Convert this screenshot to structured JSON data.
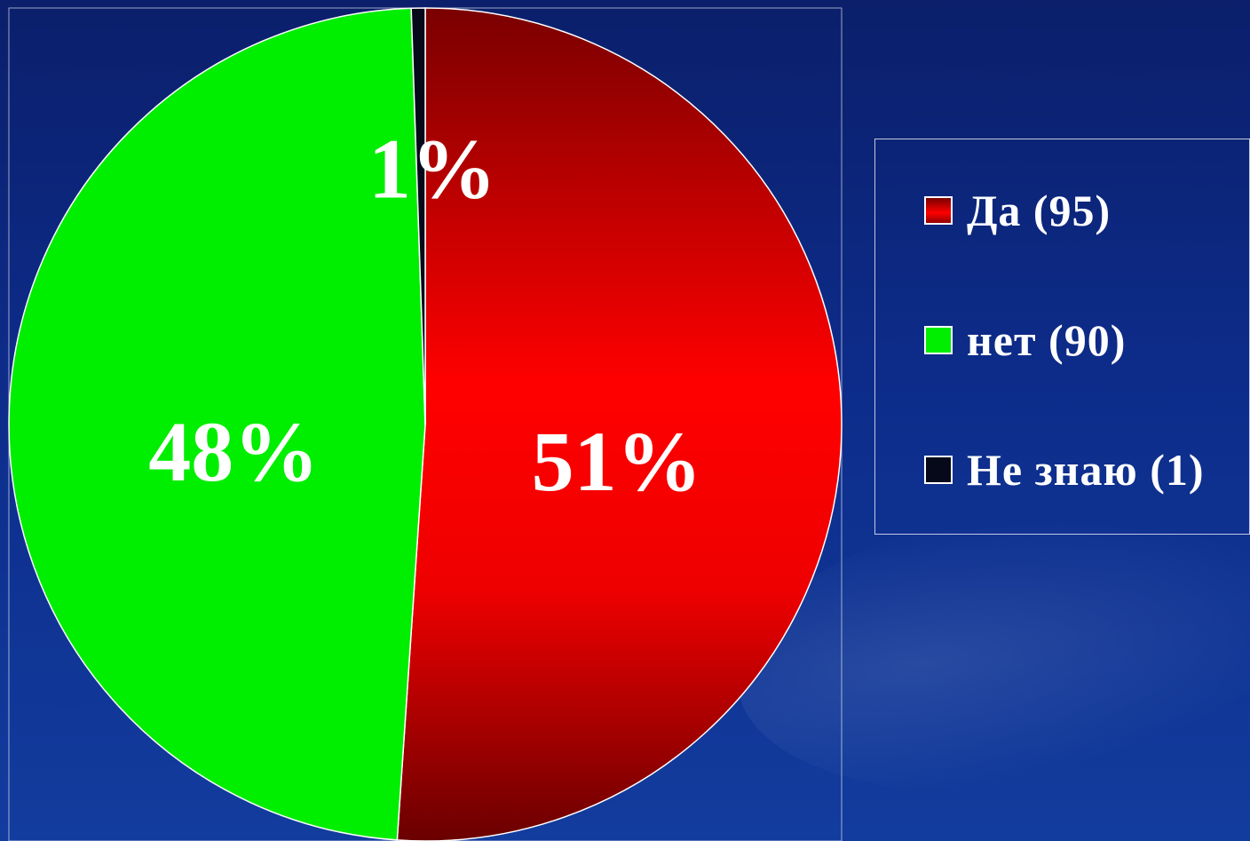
{
  "chart_data": {
    "type": "pie",
    "title": "",
    "categories": [
      "Да (95)",
      "нет (90)",
      "Не знаю (1)"
    ],
    "values": [
      95,
      90,
      1
    ],
    "percent_labels": [
      "51%",
      "48%",
      "1%"
    ],
    "colors": [
      "#e00000",
      "#00ee00",
      "#05091a"
    ],
    "legend": "right",
    "start": "top",
    "direction": "clockwise"
  }
}
